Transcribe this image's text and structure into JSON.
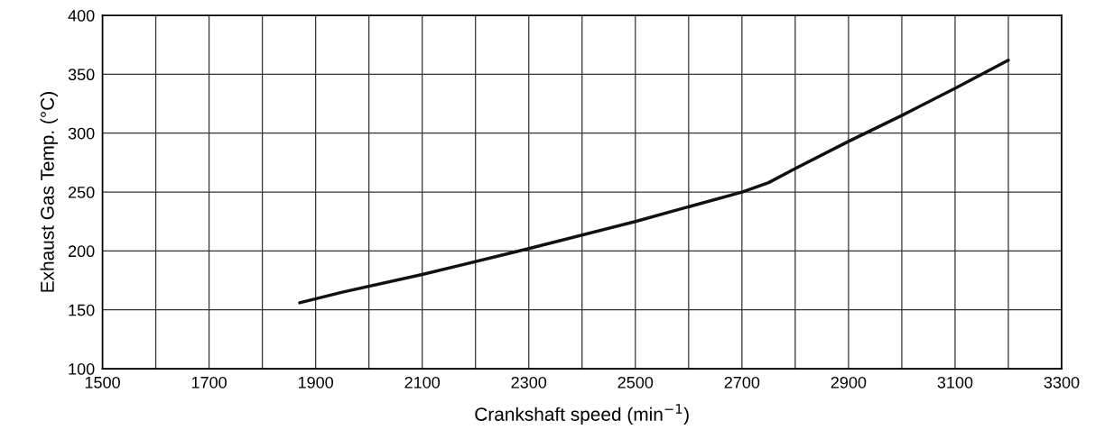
{
  "chart_data": {
    "type": "line",
    "xlabel": "Crankshaft speed (min$^{−1}$)",
    "ylabel": "Exhaust Gas Temp. (°C)",
    "series": [
      {
        "color": "#111111",
        "x": [
          1870,
          1950,
          2100,
          2300,
          2500,
          2700,
          2750,
          2800,
          2900,
          3000,
          3100,
          3200
        ],
        "values": [
          156,
          165,
          180,
          202,
          225,
          250,
          258,
          270,
          293,
          315,
          338,
          362
        ]
      }
    ],
    "xlim": [
      1500,
      3300
    ],
    "ylim": [
      100,
      400
    ],
    "xticks": [
      1500,
      {
        "value": 1600,
        "label": null
      },
      1700,
      {
        "value": 1800,
        "label": null
      },
      1900,
      {
        "value": 2000,
        "label": null
      },
      2100,
      {
        "value": 2200,
        "label": null
      },
      2300,
      {
        "value": 2400,
        "label": null
      },
      2500,
      {
        "value": 2600,
        "label": null
      },
      2700,
      {
        "value": 2800,
        "label": null
      },
      2900,
      {
        "value": 3000,
        "label": null
      },
      3100,
      {
        "value": 3200,
        "label": null
      },
      3300
    ],
    "yticks": [
      100,
      150,
      200,
      250,
      300,
      350,
      400
    ],
    "grid": true,
    "marker": "none",
    "line_style": "solid"
  }
}
